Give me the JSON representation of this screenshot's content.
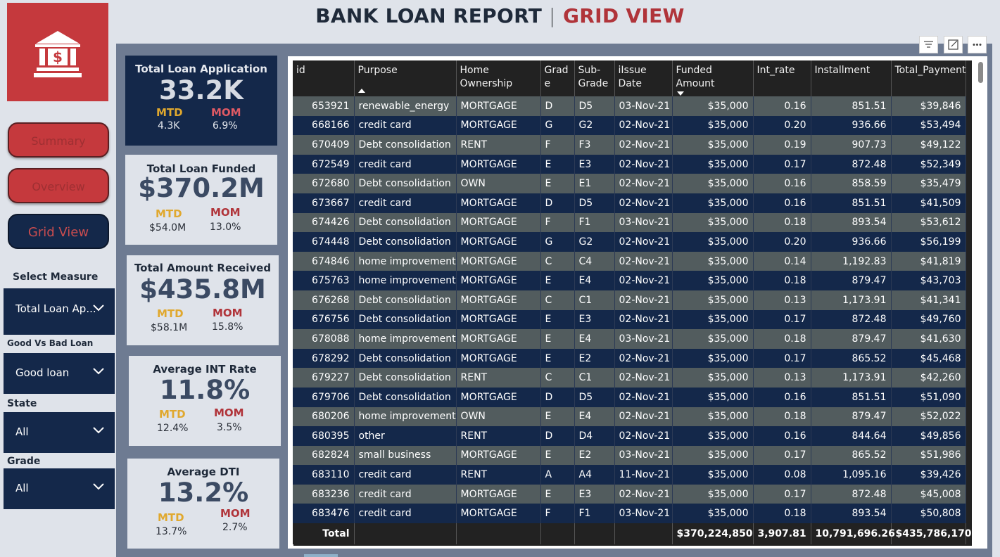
{
  "header": {
    "title_part1": "BANK LOAN REPORT",
    "separator": "|",
    "title_part2": "GRID VIEW"
  },
  "logo": {
    "icon": "bank-icon"
  },
  "nav": {
    "summary": "Summary",
    "overview": "Overview",
    "grid_view": "Grid View"
  },
  "filters": {
    "select_measure": {
      "label": "Select Measure",
      "value": "Total Loan Ap..."
    },
    "good_vs_bad": {
      "label": "Good Vs Bad Loan",
      "value": "Good loan"
    },
    "state": {
      "label": "State",
      "value": "All"
    },
    "grade": {
      "label": "Grade",
      "value": "All"
    }
  },
  "kpis": [
    {
      "title": "Total Loan Application",
      "value": "33.2K",
      "mtd_label": "MTD",
      "mtd": "4.3K",
      "mom_label": "MOM",
      "mom": "6.9%"
    },
    {
      "title": "Total Loan Funded",
      "value": "$370.2M",
      "mtd_label": "MTD",
      "mtd": "$54.0M",
      "mom_label": "MOM",
      "mom": "13.0%"
    },
    {
      "title": "Total Amount Received",
      "value": "$435.8M",
      "mtd_label": "MTD",
      "mtd": "$58.1M",
      "mom_label": "MOM",
      "mom": "15.8%"
    },
    {
      "title": "Average INT Rate",
      "value": "11.8%",
      "mtd_label": "MTD",
      "mtd": "12.4%",
      "mom_label": "MOM",
      "mom": "3.5%"
    },
    {
      "title": "Average DTI",
      "value": "13.2%",
      "mtd_label": "MTD",
      "mtd": "13.7%",
      "mom_label": "MOM",
      "mom": "2.7%"
    }
  ],
  "toolbar": {
    "icons": [
      "filter-icon",
      "focus-mode-icon",
      "more-options-icon"
    ]
  },
  "table": {
    "columns": [
      "id",
      "Purpose",
      "Home Ownership",
      "Grad e",
      "Sub- Grade",
      "iIssue Date",
      "Funded Amount",
      "Int_rate",
      "Installment",
      "Total_Payment"
    ],
    "rows": [
      [
        "653921",
        "renewable_energy",
        "MORTGAGE",
        "D",
        "D5",
        "03-Nov-21",
        "$35,000",
        "0.16",
        "851.51",
        "$39,846"
      ],
      [
        "668166",
        "credit card",
        "MORTGAGE",
        "G",
        "G2",
        "02-Nov-21",
        "$35,000",
        "0.20",
        "936.66",
        "$53,494"
      ],
      [
        "670409",
        "Debt consolidation",
        "RENT",
        "F",
        "F3",
        "02-Nov-21",
        "$35,000",
        "0.19",
        "907.73",
        "$49,122"
      ],
      [
        "672549",
        "credit card",
        "MORTGAGE",
        "E",
        "E3",
        "02-Nov-21",
        "$35,000",
        "0.17",
        "872.48",
        "$52,349"
      ],
      [
        "672680",
        "Debt consolidation",
        "OWN",
        "E",
        "E1",
        "02-Nov-21",
        "$35,000",
        "0.16",
        "858.59",
        "$35,479"
      ],
      [
        "673667",
        "credit card",
        "MORTGAGE",
        "D",
        "D5",
        "02-Nov-21",
        "$35,000",
        "0.16",
        "851.51",
        "$41,509"
      ],
      [
        "674426",
        "Debt consolidation",
        "MORTGAGE",
        "F",
        "F1",
        "03-Nov-21",
        "$35,000",
        "0.18",
        "893.54",
        "$53,612"
      ],
      [
        "674448",
        "Debt consolidation",
        "MORTGAGE",
        "G",
        "G2",
        "02-Nov-21",
        "$35,000",
        "0.20",
        "936.66",
        "$56,199"
      ],
      [
        "674846",
        "home improvement",
        "MORTGAGE",
        "C",
        "C4",
        "02-Nov-21",
        "$35,000",
        "0.14",
        "1,192.83",
        "$41,819"
      ],
      [
        "675763",
        "home improvement",
        "MORTGAGE",
        "E",
        "E4",
        "02-Nov-21",
        "$35,000",
        "0.18",
        "879.47",
        "$43,703"
      ],
      [
        "676268",
        "Debt consolidation",
        "MORTGAGE",
        "C",
        "C1",
        "02-Nov-21",
        "$35,000",
        "0.13",
        "1,173.91",
        "$41,341"
      ],
      [
        "676756",
        "Debt consolidation",
        "MORTGAGE",
        "E",
        "E3",
        "02-Nov-21",
        "$35,000",
        "0.17",
        "872.48",
        "$49,760"
      ],
      [
        "678088",
        "home improvement",
        "MORTGAGE",
        "E",
        "E4",
        "03-Nov-21",
        "$35,000",
        "0.18",
        "879.47",
        "$41,630"
      ],
      [
        "678292",
        "Debt consolidation",
        "MORTGAGE",
        "E",
        "E2",
        "02-Nov-21",
        "$35,000",
        "0.17",
        "865.52",
        "$45,468"
      ],
      [
        "679227",
        "Debt consolidation",
        "RENT",
        "C",
        "C1",
        "02-Nov-21",
        "$35,000",
        "0.13",
        "1,173.91",
        "$42,260"
      ],
      [
        "679706",
        "Debt consolidation",
        "MORTGAGE",
        "D",
        "D5",
        "02-Nov-21",
        "$35,000",
        "0.16",
        "851.51",
        "$51,090"
      ],
      [
        "680206",
        "home improvement",
        "OWN",
        "E",
        "E4",
        "02-Nov-21",
        "$35,000",
        "0.18",
        "879.47",
        "$52,022"
      ],
      [
        "680395",
        "other",
        "RENT",
        "D",
        "D4",
        "02-Nov-21",
        "$35,000",
        "0.16",
        "844.64",
        "$49,856"
      ],
      [
        "682824",
        "small business",
        "MORTGAGE",
        "E",
        "E2",
        "03-Nov-21",
        "$35,000",
        "0.17",
        "865.52",
        "$51,986"
      ],
      [
        "683110",
        "credit card",
        "RENT",
        "A",
        "A4",
        "11-Nov-21",
        "$35,000",
        "0.08",
        "1,095.16",
        "$39,426"
      ],
      [
        "683236",
        "credit card",
        "MORTGAGE",
        "E",
        "E3",
        "02-Nov-21",
        "$35,000",
        "0.17",
        "872.48",
        "$45,008"
      ],
      [
        "683476",
        "credit card",
        "MORTGAGE",
        "F",
        "F1",
        "03-Nov-21",
        "$35,000",
        "0.18",
        "893.54",
        "$50,808"
      ]
    ],
    "total": [
      "Total",
      "",
      "",
      "",
      "",
      "",
      "$370,224,850",
      "3,907.81",
      "10,791,696.26",
      "$435,786,170"
    ]
  }
}
